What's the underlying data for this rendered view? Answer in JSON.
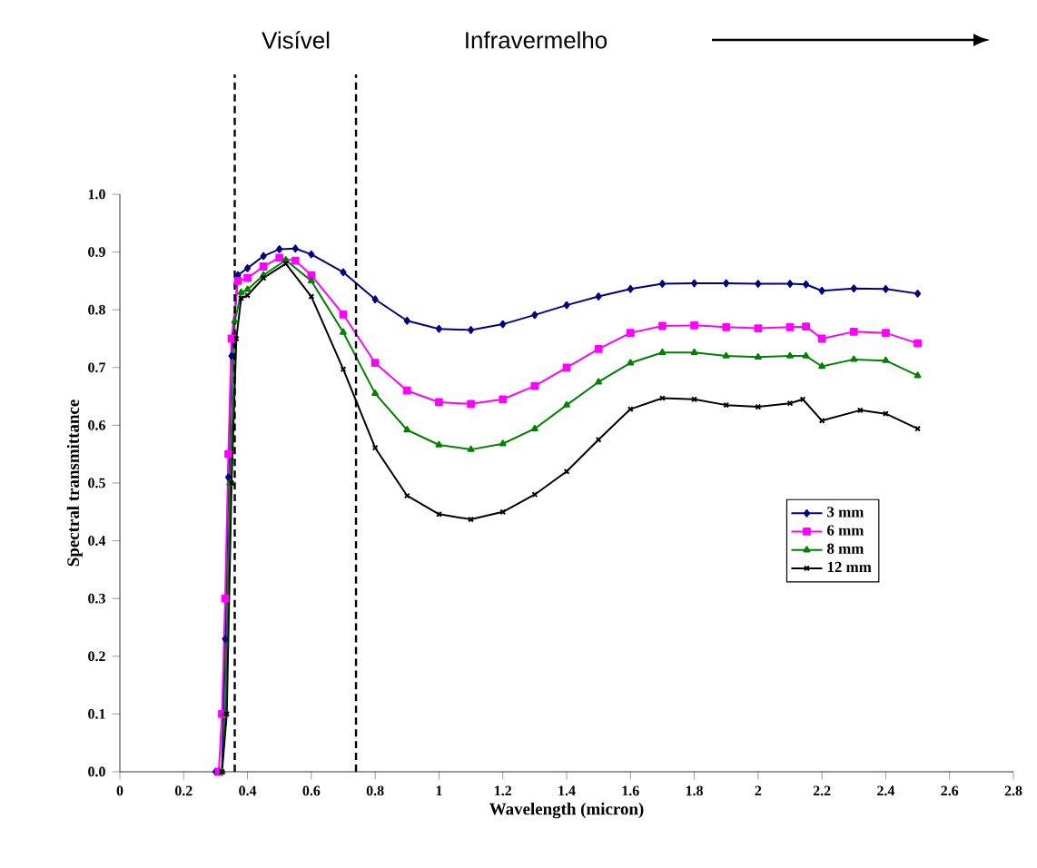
{
  "chart_data": {
    "type": "line",
    "xlabel": "Wavelength (micron)",
    "ylabel": "Spectral transmittance",
    "annotations": [
      "Visível",
      "Infravermelho"
    ],
    "xlim": [
      0,
      2.8
    ],
    "ylim": [
      0,
      1.0
    ],
    "xticks": [
      0,
      0.2,
      0.4,
      0.6,
      0.8,
      1,
      1.2,
      1.4,
      1.6,
      1.8,
      2,
      2.2,
      2.4,
      2.6,
      2.8
    ],
    "yticks": [
      {
        "value": 0,
        "label": "0.0"
      },
      {
        "value": 0.1,
        "label": "0.1"
      },
      {
        "value": 0.2,
        "label": "0.2"
      },
      {
        "value": 0.3,
        "label": "0.3"
      },
      {
        "value": 0.4,
        "label": "0.4"
      },
      {
        "value": 0.5,
        "label": "0.5"
      },
      {
        "value": 0.6,
        "label": "0.6"
      },
      {
        "value": 0.7,
        "label": "0.7"
      },
      {
        "value": 0.8,
        "label": "0.8"
      },
      {
        "value": 0.9,
        "label": "0.9"
      },
      {
        "value": 1.0,
        "label": "1.0"
      }
    ],
    "ref_lines": [
      {
        "axis": "x",
        "value": 0.36,
        "line_style": "dashed",
        "color": "#000000"
      },
      {
        "axis": "x",
        "value": 0.74,
        "line_style": "dashed",
        "color": "#000000"
      }
    ],
    "grid": false,
    "legend": "center right",
    "line_style": "solid",
    "series": [
      {
        "name": "3 mm",
        "color": "#000080",
        "marker": "diamond",
        "x": [
          0.3,
          0.32,
          0.33,
          0.34,
          0.35,
          0.37,
          0.4,
          0.45,
          0.5,
          0.55,
          0.6,
          0.7,
          0.8,
          0.9,
          1.0,
          1.1,
          1.2,
          1.3,
          1.4,
          1.5,
          1.6,
          1.7,
          1.8,
          1.9,
          2.0,
          2.1,
          2.15,
          2.2,
          2.3,
          2.4,
          2.5
        ],
        "values": [
          0,
          0,
          0.23,
          0.51,
          0.72,
          0.86,
          0.872,
          0.893,
          0.905,
          0.906,
          0.896,
          0.865,
          0.818,
          0.781,
          0.767,
          0.765,
          0.775,
          0.791,
          0.808,
          0.823,
          0.836,
          0.845,
          0.846,
          0.846,
          0.845,
          0.845,
          0.844,
          0.833,
          0.837,
          0.836,
          0.828
        ]
      },
      {
        "name": "6 mm",
        "color": "#ff00ff",
        "marker": "square",
        "x": [
          0.31,
          0.32,
          0.33,
          0.34,
          0.35,
          0.37,
          0.4,
          0.45,
          0.5,
          0.55,
          0.6,
          0.7,
          0.8,
          0.9,
          1.0,
          1.1,
          1.2,
          1.3,
          1.4,
          1.5,
          1.6,
          1.7,
          1.8,
          1.9,
          2.0,
          2.1,
          2.15,
          2.2,
          2.3,
          2.4,
          2.5
        ],
        "values": [
          0,
          0.1,
          0.3,
          0.55,
          0.75,
          0.85,
          0.855,
          0.875,
          0.89,
          0.885,
          0.86,
          0.792,
          0.708,
          0.66,
          0.64,
          0.637,
          0.645,
          0.668,
          0.7,
          0.732,
          0.76,
          0.772,
          0.773,
          0.77,
          0.768,
          0.77,
          0.771,
          0.75,
          0.762,
          0.76,
          0.742
        ]
      },
      {
        "name": "8 mm",
        "color": "#008000",
        "marker": "triangle",
        "x": [
          0.32,
          0.33,
          0.345,
          0.36,
          0.38,
          0.4,
          0.45,
          0.52,
          0.6,
          0.7,
          0.8,
          0.9,
          1.0,
          1.1,
          1.2,
          1.3,
          1.4,
          1.5,
          1.6,
          1.7,
          1.8,
          1.9,
          2.0,
          2.1,
          2.15,
          2.2,
          2.3,
          2.4,
          2.5
        ],
        "values": [
          0,
          0.1,
          0.5,
          0.78,
          0.83,
          0.835,
          0.86,
          0.886,
          0.85,
          0.761,
          0.655,
          0.592,
          0.566,
          0.558,
          0.568,
          0.594,
          0.635,
          0.675,
          0.708,
          0.726,
          0.726,
          0.72,
          0.718,
          0.72,
          0.72,
          0.702,
          0.714,
          0.712,
          0.686
        ]
      },
      {
        "name": "12 mm",
        "color": "#000000",
        "marker": "cross",
        "x": [
          0.32,
          0.335,
          0.35,
          0.365,
          0.38,
          0.4,
          0.45,
          0.52,
          0.6,
          0.7,
          0.8,
          0.9,
          1.0,
          1.1,
          1.2,
          1.3,
          1.4,
          1.5,
          1.6,
          1.7,
          1.8,
          1.9,
          2.0,
          2.1,
          2.14,
          2.2,
          2.32,
          2.4,
          2.5
        ],
        "values": [
          0,
          0.1,
          0.5,
          0.75,
          0.82,
          0.825,
          0.855,
          0.88,
          0.823,
          0.697,
          0.561,
          0.478,
          0.446,
          0.437,
          0.45,
          0.48,
          0.52,
          0.575,
          0.628,
          0.647,
          0.645,
          0.635,
          0.632,
          0.638,
          0.645,
          0.608,
          0.626,
          0.62,
          0.594
        ]
      }
    ]
  }
}
